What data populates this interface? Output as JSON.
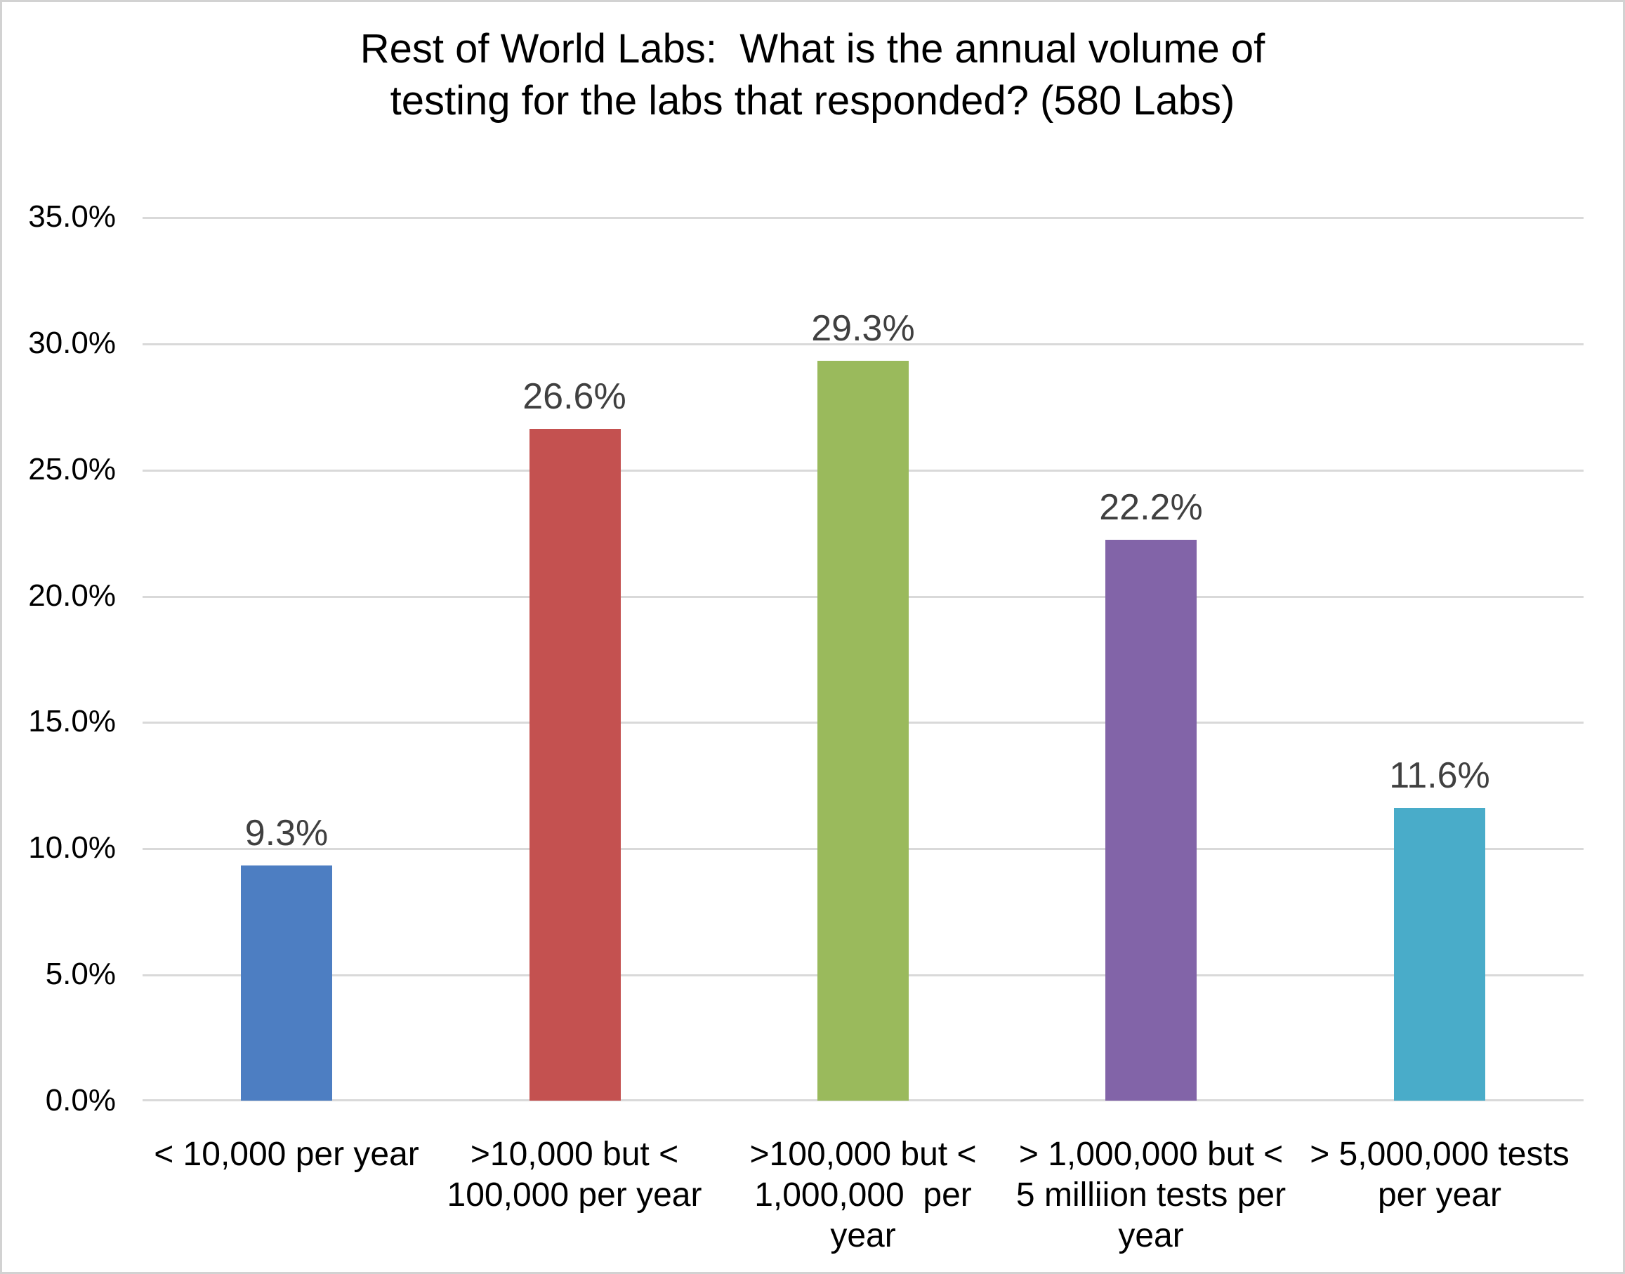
{
  "title": {
    "line1": "Rest of World Labs:  What is the annual volume of",
    "line2": "testing for the labs that responded? (580 Labs)"
  },
  "chart_data": {
    "type": "bar",
    "title": "Rest of World Labs:  What is the annual volume of testing for the labs that responded? (580 Labs)",
    "subtitle": "",
    "xlabel": "",
    "ylabel": "",
    "categories": [
      "< 10,000 per year",
      ">10,000 but < 100,000 per year",
      ">100,000 but < 1,000,000  per year",
      "> 1,000,000 but < 5 milliion tests per year",
      "> 5,000,000 tests per year"
    ],
    "category_lines": [
      [
        "< 10,000 per year"
      ],
      [
        ">10,000 but <",
        "100,000 per year"
      ],
      [
        ">100,000 but <",
        "1,000,000  per",
        "year"
      ],
      [
        "> 1,000,000 but <",
        "5 milliion tests per",
        "year"
      ],
      [
        "> 5,000,000 tests",
        "per year"
      ]
    ],
    "values": [
      9.3,
      26.6,
      29.3,
      22.2,
      11.6
    ],
    "data_labels": [
      "9.3%",
      "26.6%",
      "29.3%",
      "22.2%",
      "11.6%"
    ],
    "bar_colors": [
      "#4D7EC2",
      "#C45150",
      "#9ABA5C",
      "#8264A8",
      "#49ACC9"
    ],
    "yticks": [
      "35.0%",
      "30.0%",
      "25.0%",
      "20.0%",
      "15.0%",
      "10.0%",
      "5.0%",
      "0.0%"
    ],
    "ylim": [
      0,
      35
    ],
    "ytick_step": 5,
    "grid": true,
    "legend_position": "none",
    "gridline_color": "#D9D9D9",
    "data_label_color": "#404040",
    "axis_text_color": "#000000",
    "background_color": "#FFFFFF"
  }
}
